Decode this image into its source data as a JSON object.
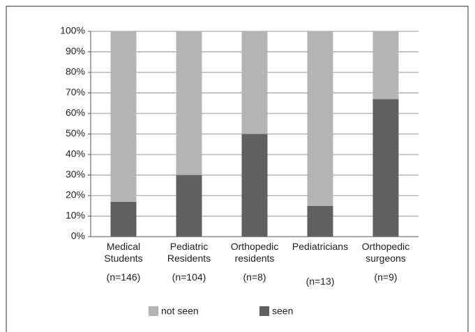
{
  "chart_data": {
    "type": "stacked_bar",
    "categories": [
      "Medical Students",
      "Pediatric Residents",
      "Orthopedic residents",
      "Pediatricians",
      "Orthopedic surgeons"
    ],
    "category_notes": [
      "(n=146)",
      "(n=104)",
      "(n=8)",
      "(n=13)",
      "(n=9)"
    ],
    "series": [
      {
        "name": "seen",
        "color": "#606060",
        "values": [
          17,
          30,
          50,
          15,
          67
        ]
      },
      {
        "name": "not seen",
        "color": "#b4b4b4",
        "values": [
          83,
          70,
          50,
          85,
          33
        ]
      }
    ],
    "ylim": [
      0,
      100
    ],
    "yticks": [
      {
        "value": 0,
        "label": "0%"
      },
      {
        "value": 10,
        "label": "10%"
      },
      {
        "value": 20,
        "label": "20%"
      },
      {
        "value": 30,
        "label": "30%"
      },
      {
        "value": 40,
        "label": "40%"
      },
      {
        "value": 50,
        "label": "50%"
      },
      {
        "value": 60,
        "label": "60%"
      },
      {
        "value": 70,
        "label": "70%"
      },
      {
        "value": 80,
        "label": "80%"
      },
      {
        "value": 90,
        "label": "90%"
      },
      {
        "value": 100,
        "label": "100%"
      }
    ],
    "grid": true
  }
}
